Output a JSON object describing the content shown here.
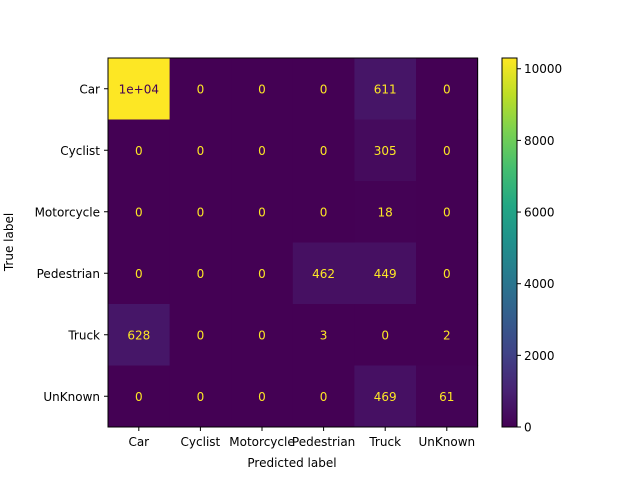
{
  "chart_data": {
    "type": "heatmap",
    "title": "",
    "xlabel": "Predicted label",
    "ylabel": "True label",
    "x_categories": [
      "Car",
      "Cyclist",
      "Motorcycle",
      "Pedestrian",
      "Truck",
      "UnKnown"
    ],
    "y_categories": [
      "Car",
      "Cyclist",
      "Motorcycle",
      "Pedestrian",
      "Truck",
      "UnKnown"
    ],
    "values": [
      [
        10300,
        0,
        0,
        0,
        611,
        0
      ],
      [
        0,
        0,
        0,
        0,
        305,
        0
      ],
      [
        0,
        0,
        0,
        0,
        18,
        0
      ],
      [
        0,
        0,
        0,
        462,
        449,
        0
      ],
      [
        628,
        0,
        0,
        3,
        0,
        2
      ],
      [
        0,
        0,
        0,
        0,
        469,
        61
      ]
    ],
    "cell_labels": [
      [
        "1e+04",
        "0",
        "0",
        "0",
        "611",
        "0"
      ],
      [
        "0",
        "0",
        "0",
        "0",
        "305",
        "0"
      ],
      [
        "0",
        "0",
        "0",
        "0",
        "18",
        "0"
      ],
      [
        "0",
        "0",
        "0",
        "462",
        "449",
        "0"
      ],
      [
        "628",
        "0",
        "0",
        "3",
        "0",
        "2"
      ],
      [
        "0",
        "0",
        "0",
        "0",
        "469",
        "61"
      ]
    ],
    "colormap": "viridis",
    "colorbar": {
      "range": [
        0,
        10300
      ],
      "ticks": [
        0,
        2000,
        4000,
        6000,
        8000,
        10000
      ]
    },
    "text_color_dark_cells": "#fde725",
    "text_color_bright_cells": "#440154"
  }
}
